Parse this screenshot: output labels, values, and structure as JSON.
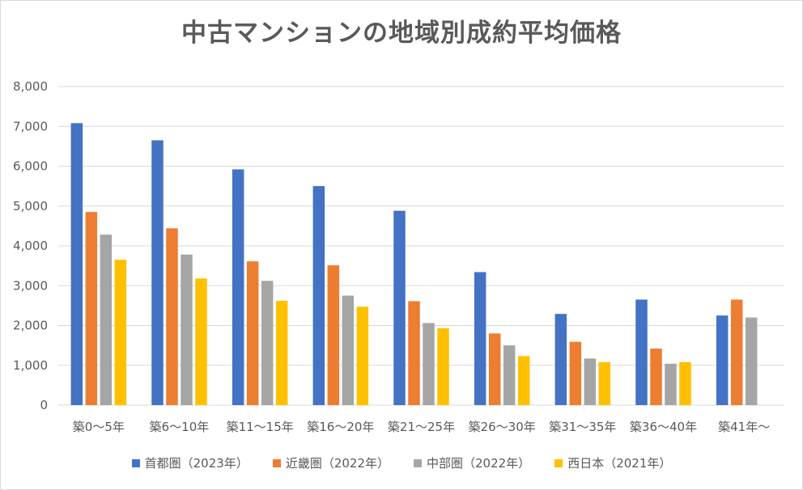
{
  "chart_data": {
    "type": "bar",
    "title": "中古マンションの地域別成約平均価格",
    "xlabel": "",
    "ylabel": "",
    "ylim": [
      0,
      8000
    ],
    "yticks": [
      "0",
      "1,000",
      "2,000",
      "3,000",
      "4,000",
      "5,000",
      "6,000",
      "7,000",
      "8,000"
    ],
    "grid": true,
    "legend_position": "bottom",
    "categories": [
      "築0～5年",
      "築6～10年",
      "築11～15年",
      "築16～20年",
      "築21～25年",
      "築26～30年",
      "築31～35年",
      "築36～40年",
      "築41年～"
    ],
    "series": [
      {
        "name": "首都圏（2023年）",
        "color": "#4472c4",
        "values": [
          7080,
          6650,
          5920,
          5500,
          4880,
          3340,
          2290,
          2650,
          2250
        ]
      },
      {
        "name": "近畿圏（2022年）",
        "color": "#ed7d31",
        "values": [
          4850,
          4440,
          3610,
          3510,
          2610,
          1800,
          1590,
          1420,
          2650
        ]
      },
      {
        "name": "中部圏（2022年）",
        "color": "#a5a5a5",
        "values": [
          4280,
          3780,
          3120,
          2750,
          2060,
          1500,
          1170,
          1040,
          2200
        ]
      },
      {
        "name": "西日本（2021年）",
        "color": "#ffc000",
        "values": [
          3650,
          3180,
          2620,
          2470,
          1930,
          1230,
          1080,
          1080,
          null
        ]
      }
    ]
  }
}
